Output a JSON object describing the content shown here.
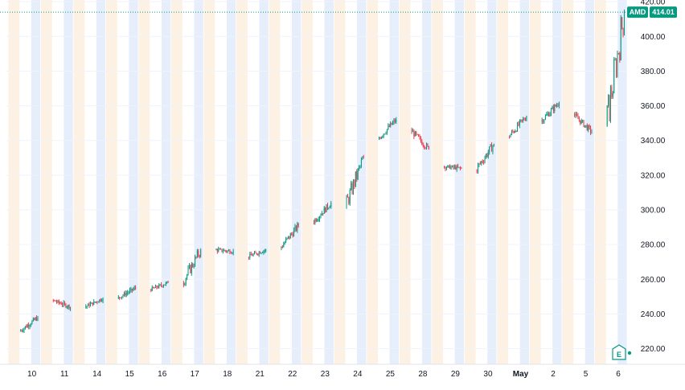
{
  "chart_data": {
    "type": "candlestick",
    "symbol": "AMD",
    "last_price": "414.01",
    "colors": {
      "up": "#089981",
      "down": "#f23645",
      "last_price_badge": "#089981",
      "session_premarket": "#fdf1e3",
      "session_postmarket": "#e6edfb",
      "grid": "#f0f3fa",
      "price_line": "#089981"
    },
    "y_axis": {
      "ticks": [
        "220.00",
        "240.00",
        "260.00",
        "280.00",
        "300.00",
        "320.00",
        "340.00",
        "360.00",
        "380.00",
        "400.00",
        "420.00"
      ],
      "range": [
        211,
        421
      ]
    },
    "x_axis": {
      "labels": [
        "10",
        "11",
        "14",
        "15",
        "16",
        "17",
        "18",
        "21",
        "22",
        "23",
        "24",
        "25",
        "28",
        "29",
        "30",
        "May",
        "2",
        "5",
        "6"
      ],
      "bold_labels": [
        "May"
      ]
    },
    "sessions": [
      {
        "date": "10",
        "o": 230,
        "c": 238
      },
      {
        "date": "11",
        "o": 248,
        "c": 244
      },
      {
        "date": "14",
        "o": 244,
        "c": 249
      },
      {
        "date": "15",
        "o": 249,
        "c": 255
      },
      {
        "date": "16",
        "o": 254,
        "c": 258
      },
      {
        "date": "17",
        "o": 258,
        "c": 277
      },
      {
        "date": "18",
        "o": 277,
        "c": 276
      },
      {
        "date": "21",
        "o": 273,
        "c": 277
      },
      {
        "date": "22",
        "o": 278,
        "c": 291
      },
      {
        "date": "23",
        "o": 293,
        "c": 304
      },
      {
        "date": "24",
        "o": 302,
        "c": 330
      },
      {
        "date": "25",
        "o": 341,
        "c": 352
      },
      {
        "date": "28",
        "o": 346,
        "c": 335
      },
      {
        "date": "29",
        "o": 325,
        "c": 324
      },
      {
        "date": "30",
        "o": 323,
        "c": 338
      },
      {
        "date": "May",
        "o": 342,
        "c": 354
      },
      {
        "date": "2",
        "o": 351,
        "c": 362
      },
      {
        "date": "5",
        "o": 355,
        "c": 345
      },
      {
        "date": "6",
        "o": 348,
        "c": 414
      }
    ],
    "grid": true
  },
  "icons": {
    "earnings": "earnings-flag-icon",
    "earnings_letter": "E"
  }
}
